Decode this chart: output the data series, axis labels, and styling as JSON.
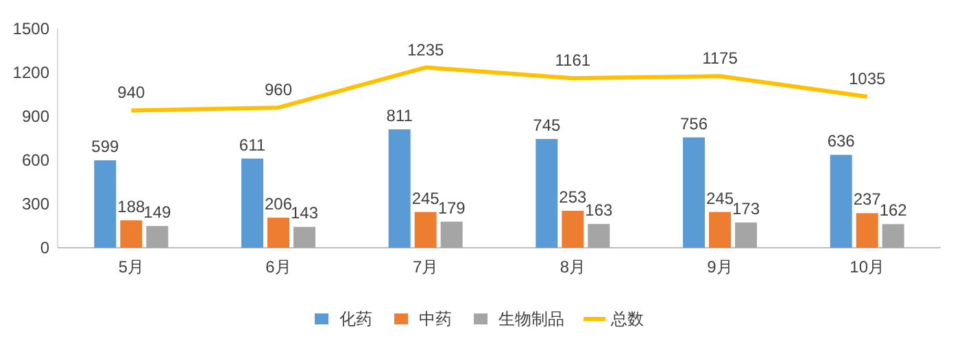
{
  "chart_data": {
    "type": "bar",
    "categories": [
      "5月",
      "6月",
      "7月",
      "8月",
      "9月",
      "10月"
    ],
    "series": [
      {
        "name": "化药",
        "color": "#5b9bd5",
        "values": [
          599,
          611,
          811,
          745,
          756,
          636
        ]
      },
      {
        "name": "中药",
        "color": "#ed7d31",
        "values": [
          188,
          206,
          245,
          253,
          245,
          237
        ]
      },
      {
        "name": "生物制品",
        "color": "#a5a5a5",
        "values": [
          149,
          143,
          179,
          163,
          173,
          162
        ]
      },
      {
        "name": "总数",
        "type": "line",
        "color": "#ffc000",
        "values": [
          940,
          960,
          1235,
          1161,
          1175,
          1035
        ]
      }
    ],
    "ylim": [
      0,
      1500
    ],
    "yticks": [
      0,
      300,
      600,
      900,
      1200,
      1500
    ],
    "data_labels": true,
    "legend": "bottom",
    "marker": "none"
  }
}
